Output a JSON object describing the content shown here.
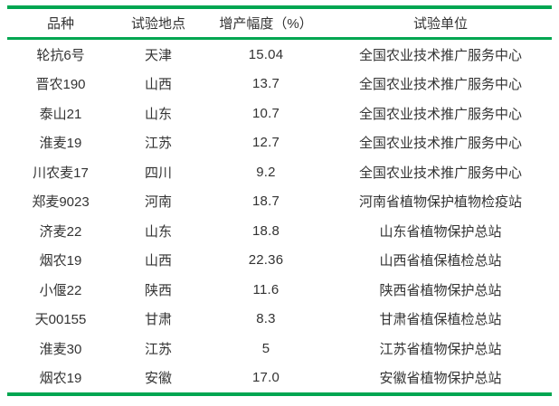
{
  "colors": {
    "rule_green": "#00a651",
    "text": "#333333",
    "background": "#ffffff"
  },
  "table": {
    "columns": [
      {
        "key": "variety",
        "label": "品种"
      },
      {
        "key": "location",
        "label": "试验地点"
      },
      {
        "key": "increase",
        "label": "增产幅度（%）"
      },
      {
        "key": "unit",
        "label": "试验单位"
      }
    ],
    "rows": [
      {
        "variety": "轮抗6号",
        "location": "天津",
        "increase": "15.04",
        "unit": "全国农业技术推广服务中心"
      },
      {
        "variety": "晋农190",
        "location": "山西",
        "increase": "13.7",
        "unit": "全国农业技术推广服务中心"
      },
      {
        "variety": "泰山21",
        "location": "山东",
        "increase": "10.7",
        "unit": "全国农业技术推广服务中心"
      },
      {
        "variety": "淮麦19",
        "location": "江苏",
        "increase": "12.7",
        "unit": "全国农业技术推广服务中心"
      },
      {
        "variety": "川农麦17",
        "location": "四川",
        "increase": "9.2",
        "unit": "全国农业技术推广服务中心"
      },
      {
        "variety": "郑麦9023",
        "location": "河南",
        "increase": "18.7",
        "unit": "河南省植物保护植物检疫站"
      },
      {
        "variety": "济麦22",
        "location": "山东",
        "increase": "18.8",
        "unit": "山东省植物保护总站"
      },
      {
        "variety": "烟农19",
        "location": "山西",
        "increase": "22.36",
        "unit": "山西省植保植检总站"
      },
      {
        "variety": "小偃22",
        "location": "陕西",
        "increase": "11.6",
        "unit": "陕西省植物保护总站"
      },
      {
        "variety": "天00155",
        "location": "甘肃",
        "increase": "8.3",
        "unit": "甘肃省植保植检总站"
      },
      {
        "variety": "淮麦30",
        "location": "江苏",
        "increase": "5",
        "unit": "江苏省植物保护总站"
      },
      {
        "variety": "烟农19",
        "location": "安徽",
        "increase": "17.0",
        "unit": "安徽省植物保护总站"
      }
    ]
  }
}
